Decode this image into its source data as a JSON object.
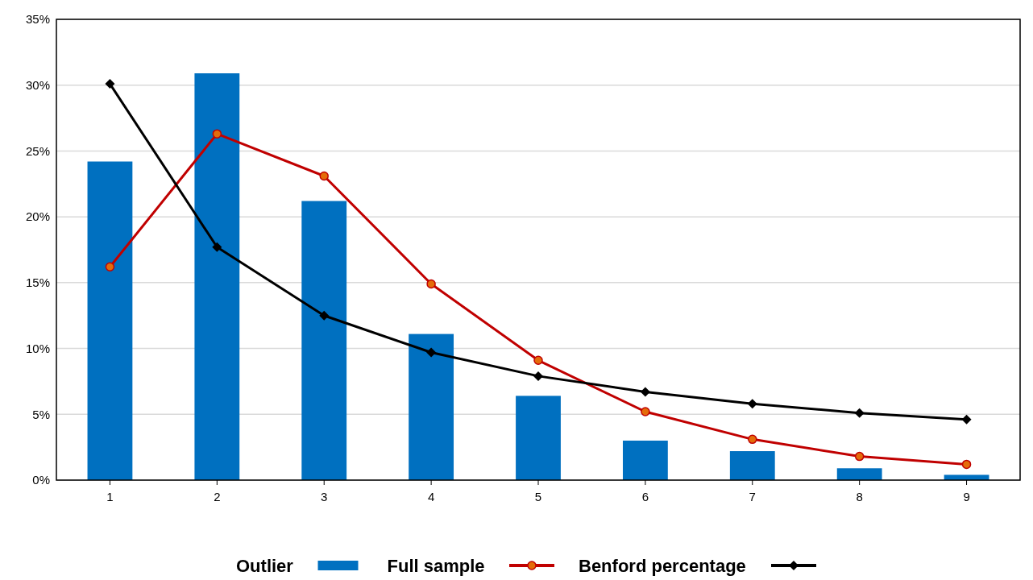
{
  "chart_data": {
    "type": "bar",
    "categories": [
      "1",
      "2",
      "3",
      "4",
      "5",
      "6",
      "7",
      "8",
      "9"
    ],
    "series": [
      {
        "name": "Outlier",
        "color": "#0070c0",
        "values": [
          24.2,
          30.9,
          21.2,
          11.1,
          6.4,
          3.0,
          2.2,
          0.9,
          0.4
        ]
      },
      {
        "name": "Full sample",
        "type": "line",
        "color": "#c00000",
        "marker": "circle",
        "values": [
          16.2,
          26.3,
          23.1,
          14.9,
          9.1,
          5.2,
          3.1,
          1.8,
          1.2
        ]
      },
      {
        "name": "Benford percentage",
        "type": "line",
        "color": "#000000",
        "marker": "diamond",
        "values": [
          30.1,
          17.7,
          12.5,
          9.7,
          7.9,
          6.7,
          5.8,
          5.1,
          4.6
        ]
      }
    ],
    "ylim": [
      0,
      35
    ],
    "yticks": [
      {
        "value": 0,
        "label": "0%"
      },
      {
        "value": 5,
        "label": "5%"
      },
      {
        "value": 10,
        "label": "10%"
      },
      {
        "value": 15,
        "label": "15%"
      },
      {
        "value": 20,
        "label": "20%"
      },
      {
        "value": 25,
        "label": "25%"
      },
      {
        "value": 30,
        "label": "30%"
      },
      {
        "value": 35,
        "label": "35%"
      }
    ],
    "grid": "y",
    "legend": "bottom",
    "line_style": "solid"
  }
}
